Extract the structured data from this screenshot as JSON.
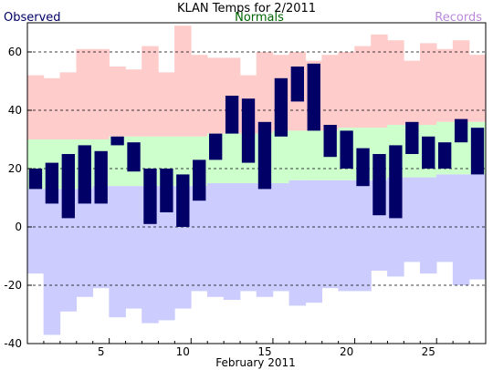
{
  "header": {
    "title": "KLAN Temps for 2/2011",
    "legend_observed": "Observed",
    "legend_normals": "Normals",
    "legend_records": "Records"
  },
  "colors": {
    "observed": "#000066",
    "normals_fill": "#ccffcc",
    "record_high_fill": "#ffcccc",
    "record_low_fill": "#ccccff",
    "normals_text": "#006600",
    "records_text": "#bb88dd",
    "observed_text": "#000066",
    "grid": "#000000"
  },
  "chart_data": {
    "type": "bar",
    "title": "KLAN Temps for 2/2011",
    "xlabel": "February 2011",
    "ylabel": "",
    "xlim": [
      0.5,
      28.5
    ],
    "ylim": [
      -40,
      70
    ],
    "y_ticks": [
      -40,
      -20,
      0,
      20,
      40,
      60
    ],
    "x_ticks": [
      5,
      10,
      15,
      20,
      25
    ],
    "grid": "dashed horizontal at y ticks",
    "legend": "top",
    "days": [
      1,
      2,
      3,
      4,
      5,
      6,
      7,
      8,
      9,
      10,
      11,
      12,
      13,
      14,
      15,
      16,
      17,
      18,
      19,
      20,
      21,
      22,
      23,
      24,
      25,
      26,
      27,
      28
    ],
    "observed_high": [
      20,
      22,
      25,
      28,
      26,
      31,
      29,
      20,
      20,
      18,
      23,
      32,
      45,
      44,
      36,
      51,
      55,
      56,
      35,
      33,
      27,
      25,
      28,
      36,
      31,
      29,
      37,
      34
    ],
    "observed_low": [
      13,
      8,
      3,
      8,
      8,
      28,
      19,
      1,
      5,
      0,
      9,
      23,
      32,
      22,
      13,
      31,
      43,
      33,
      24,
      20,
      14,
      4,
      3,
      25,
      20,
      20,
      29,
      18
    ],
    "normal_high": [
      30,
      30,
      30,
      30,
      30,
      31,
      31,
      31,
      31,
      31,
      31,
      32,
      32,
      32,
      32,
      33,
      33,
      33,
      33,
      34,
      34,
      34,
      35,
      35,
      35,
      36,
      36,
      36
    ],
    "normal_low": [
      13,
      13,
      13,
      13,
      14,
      14,
      14,
      14,
      14,
      14,
      14,
      15,
      15,
      15,
      15,
      15,
      16,
      16,
      16,
      16,
      16,
      16,
      17,
      17,
      17,
      18,
      18,
      18
    ],
    "record_high": [
      52,
      51,
      53,
      61,
      61,
      55,
      54,
      62,
      53,
      69,
      59,
      58,
      58,
      52,
      60,
      59,
      60,
      57,
      59,
      60,
      62,
      66,
      64,
      57,
      63,
      61,
      64,
      59
    ],
    "record_low": [
      -16,
      -37,
      -29,
      -24,
      -21,
      -31,
      -28,
      -33,
      -32,
      -28,
      -22,
      -24,
      -25,
      -22,
      -24,
      -22,
      -27,
      -26,
      -21,
      -22,
      -22,
      -15,
      -17,
      -12,
      -16,
      -12,
      -20,
      -18
    ]
  }
}
